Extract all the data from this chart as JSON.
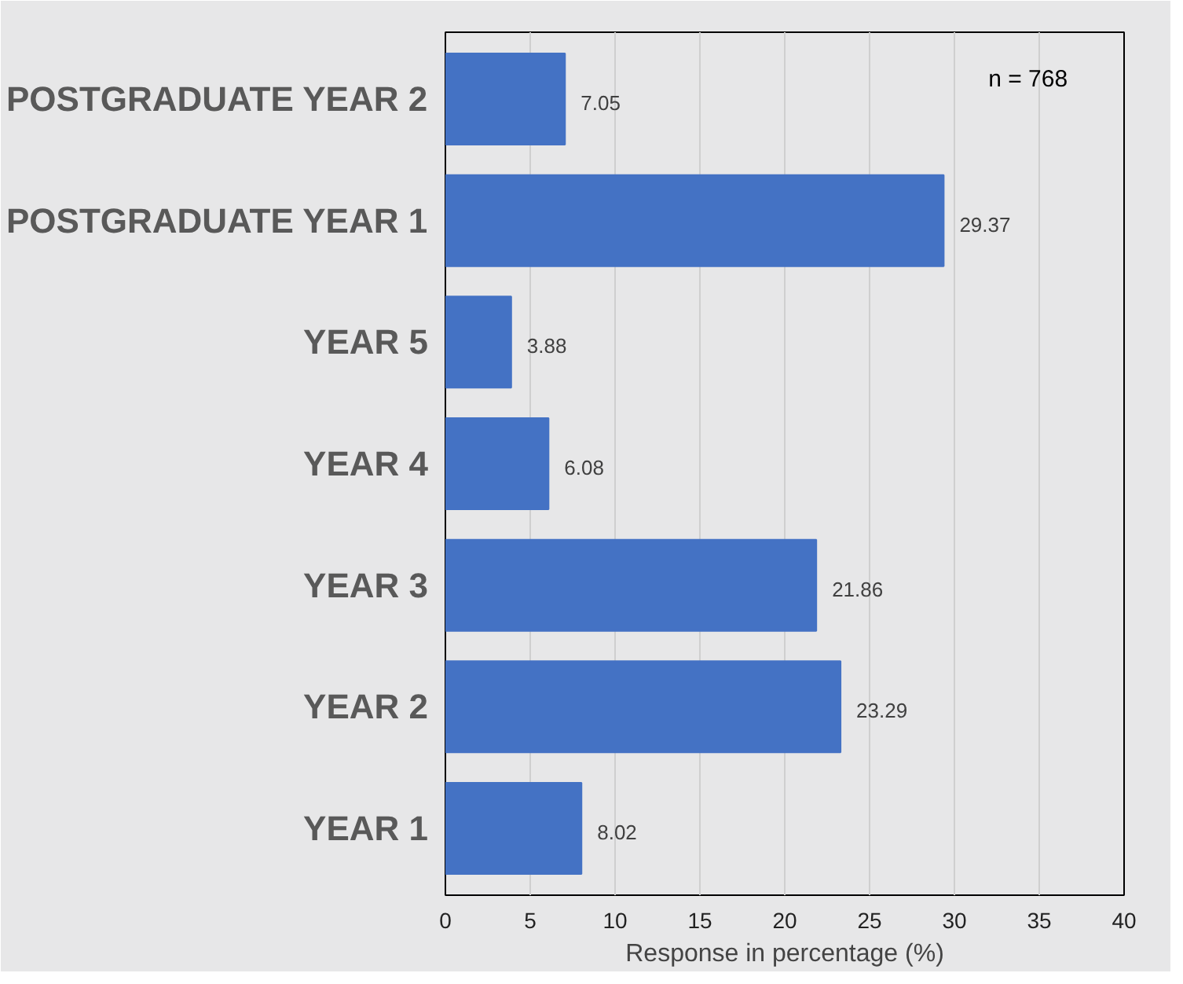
{
  "chart_data": {
    "type": "bar",
    "orientation": "horizontal",
    "categories": [
      "POSTGRADUATE YEAR 2",
      "POSTGRADUATE YEAR 1",
      "YEAR 5",
      "YEAR 4",
      "YEAR 3",
      "YEAR 2",
      "YEAR 1"
    ],
    "values": [
      7.05,
      29.37,
      3.88,
      6.08,
      21.86,
      23.29,
      8.02
    ],
    "color": "#4472c4",
    "data_labels": true,
    "xlim": [
      0,
      40
    ],
    "xticks": [
      0,
      5,
      10,
      15,
      20,
      25,
      30,
      35,
      40
    ],
    "xlabel": "Response in percentage (%)",
    "annotations": [
      "n = 768"
    ],
    "grid": "x"
  }
}
